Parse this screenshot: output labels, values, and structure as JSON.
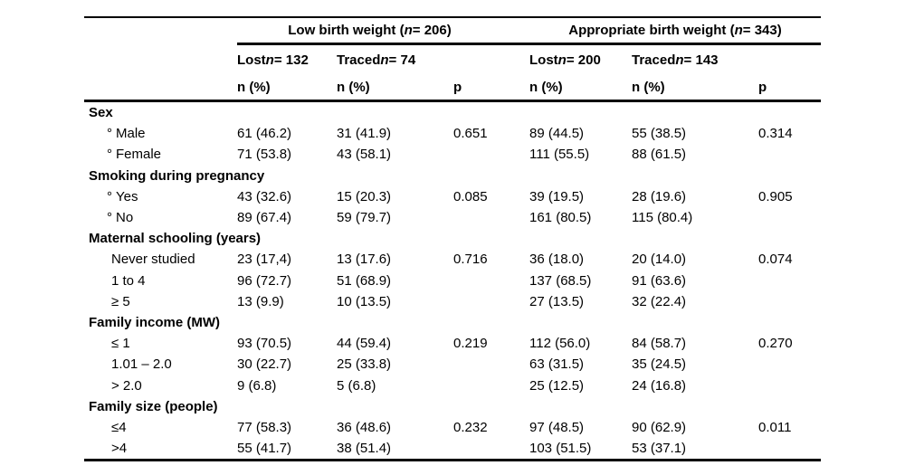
{
  "colors": {
    "text": "#000000",
    "background": "#ffffff",
    "rule": "#000000"
  },
  "table": {
    "group_headers": [
      {
        "pre": "Low birth weight (",
        "n": "n",
        "post": " = 206)"
      },
      {
        "pre": "Appropriate birth weight (",
        "n": "n",
        "post": " = 343)"
      }
    ],
    "subgroup_headers": [
      {
        "pre": "Lost",
        "n": "n",
        "post": " = 132"
      },
      {
        "pre": "Traced",
        "n": "n",
        "post": " = 74"
      },
      {
        "pre": "Lost",
        "n": "n",
        "post": " = 200"
      },
      {
        "pre": "Traced",
        "n": "n",
        "post": " = 143"
      }
    ],
    "stat_headers": [
      "n (%)",
      "n (%)",
      "p",
      "n (%)",
      "n (%)",
      "p"
    ],
    "rows": [
      {
        "type": "section",
        "label": "Sex"
      },
      {
        "type": "item",
        "bullet": "°",
        "label": "Male",
        "cells": [
          "61 (46.2)",
          "31 (41.9)",
          "0.651",
          "89 (44.5)",
          "55 (38.5)",
          "0.314"
        ]
      },
      {
        "type": "item",
        "bullet": "°",
        "label": "Female",
        "cells": [
          "71 (53.8)",
          "43 (58.1)",
          "",
          "111 (55.5)",
          "88 (61.5)",
          ""
        ]
      },
      {
        "type": "section",
        "label": "Smoking during pregnancy"
      },
      {
        "type": "item",
        "bullet": "°",
        "label": "Yes",
        "cells": [
          "43 (32.6)",
          "15 (20.3)",
          "0.085",
          "39 (19.5)",
          "28 (19.6)",
          "0.905"
        ]
      },
      {
        "type": "item",
        "bullet": "°",
        "label": "No",
        "cells": [
          "89 (67.4)",
          "59 (79.7)",
          "",
          "161 (80.5)",
          "115 (80.4)",
          ""
        ]
      },
      {
        "type": "section",
        "label": "Maternal schooling (years)"
      },
      {
        "type": "item",
        "bullet": "",
        "label": "Never studied",
        "cells": [
          "23 (17,4)",
          "13 (17.6)",
          "0.716",
          "36 (18.0)",
          "20 (14.0)",
          "0.074"
        ]
      },
      {
        "type": "item",
        "bullet": "",
        "label": "1 to 4",
        "cells": [
          "96 (72.7)",
          "51 (68.9)",
          "",
          "137 (68.5)",
          "91 (63.6)",
          ""
        ]
      },
      {
        "type": "item",
        "bullet": "",
        "label": "≥ 5",
        "cells": [
          "13 (9.9)",
          "10 (13.5)",
          "",
          "27 (13.5)",
          "32 (22.4)",
          ""
        ]
      },
      {
        "type": "section",
        "label": "Family income (MW)"
      },
      {
        "type": "item",
        "bullet": "",
        "label": "≤ 1",
        "cells": [
          "93 (70.5)",
          "44 (59.4)",
          "0.219",
          "112 (56.0)",
          "84 (58.7)",
          "0.270"
        ]
      },
      {
        "type": "item",
        "bullet": "",
        "label": "1.01 – 2.0",
        "cells": [
          "30 (22.7)",
          "25 (33.8)",
          "",
          "63 (31.5)",
          "35 (24.5)",
          ""
        ]
      },
      {
        "type": "item",
        "bullet": "",
        "label": "> 2.0",
        "cells": [
          "9 (6.8)",
          "5 (6.8)",
          "",
          "25 (12.5)",
          "24 (16.8)",
          ""
        ]
      },
      {
        "type": "section",
        "label": "Family size (people)"
      },
      {
        "type": "item",
        "bullet": "",
        "label": "≤4",
        "cells": [
          "77 (58.3)",
          "36 (48.6)",
          "0.232",
          "97 (48.5)",
          "90 (62.9)",
          "0.011"
        ]
      },
      {
        "type": "item",
        "bullet": "",
        "label": ">4",
        "cells": [
          "55 (41.7)",
          "38 (51.4)",
          "",
          "103 (51.5)",
          "53 (37.1)",
          ""
        ]
      }
    ]
  }
}
